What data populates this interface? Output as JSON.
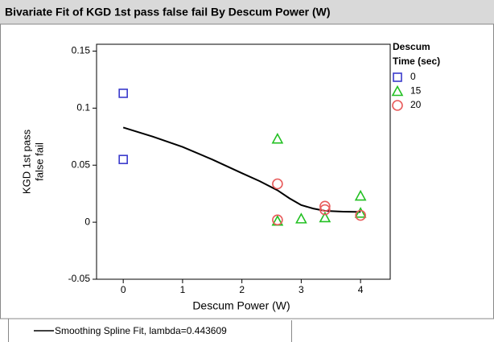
{
  "chart_data": {
    "type": "scatter",
    "title": "Bivariate Fit of KGD 1st pass false fail By Descum Power (W)",
    "xlabel": "Descum Power (W)",
    "ylabel_lines": [
      "KGD 1st pass",
      "false fail"
    ],
    "legend_title_lines": [
      "Descum",
      "Time (sec)"
    ],
    "xlim": [
      -0.45,
      4.5
    ],
    "xticks": [
      0,
      1,
      2,
      3,
      4
    ],
    "ylim": [
      -0.05,
      0.156
    ],
    "yticks": [
      -0.05,
      0,
      0.05,
      0.1,
      0.15
    ],
    "series": [
      {
        "name": "0",
        "color": "#3a3acc",
        "marker": "square",
        "x": [
          0,
          0
        ],
        "values": [
          0.113,
          0.055
        ]
      },
      {
        "name": "15",
        "color": "#22c022",
        "marker": "triangle",
        "x": [
          2.6,
          2.6,
          3,
          3.4,
          4,
          4
        ],
        "values": [
          0.073,
          0.001,
          0.003,
          0.004,
          0.023,
          0.008
        ]
      },
      {
        "name": "20",
        "color": "#e85a5a",
        "marker": "circle",
        "x": [
          2.6,
          2.6,
          3.4,
          3.4,
          4
        ],
        "values": [
          0.0336,
          0.002,
          0.014,
          0.011,
          0.006
        ]
      }
    ],
    "fit": {
      "name": "Smoothing Spline Fit, lambda=0.443609",
      "color": "#000000",
      "x": [
        0,
        0.5,
        1,
        1.5,
        2,
        2.3,
        2.6,
        2.8,
        3,
        3.2,
        3.4,
        3.7,
        4
      ],
      "values": [
        0.083,
        0.075,
        0.066,
        0.055,
        0.043,
        0.036,
        0.028,
        0.021,
        0.015,
        0.012,
        0.01,
        0.0093,
        0.009
      ]
    }
  }
}
